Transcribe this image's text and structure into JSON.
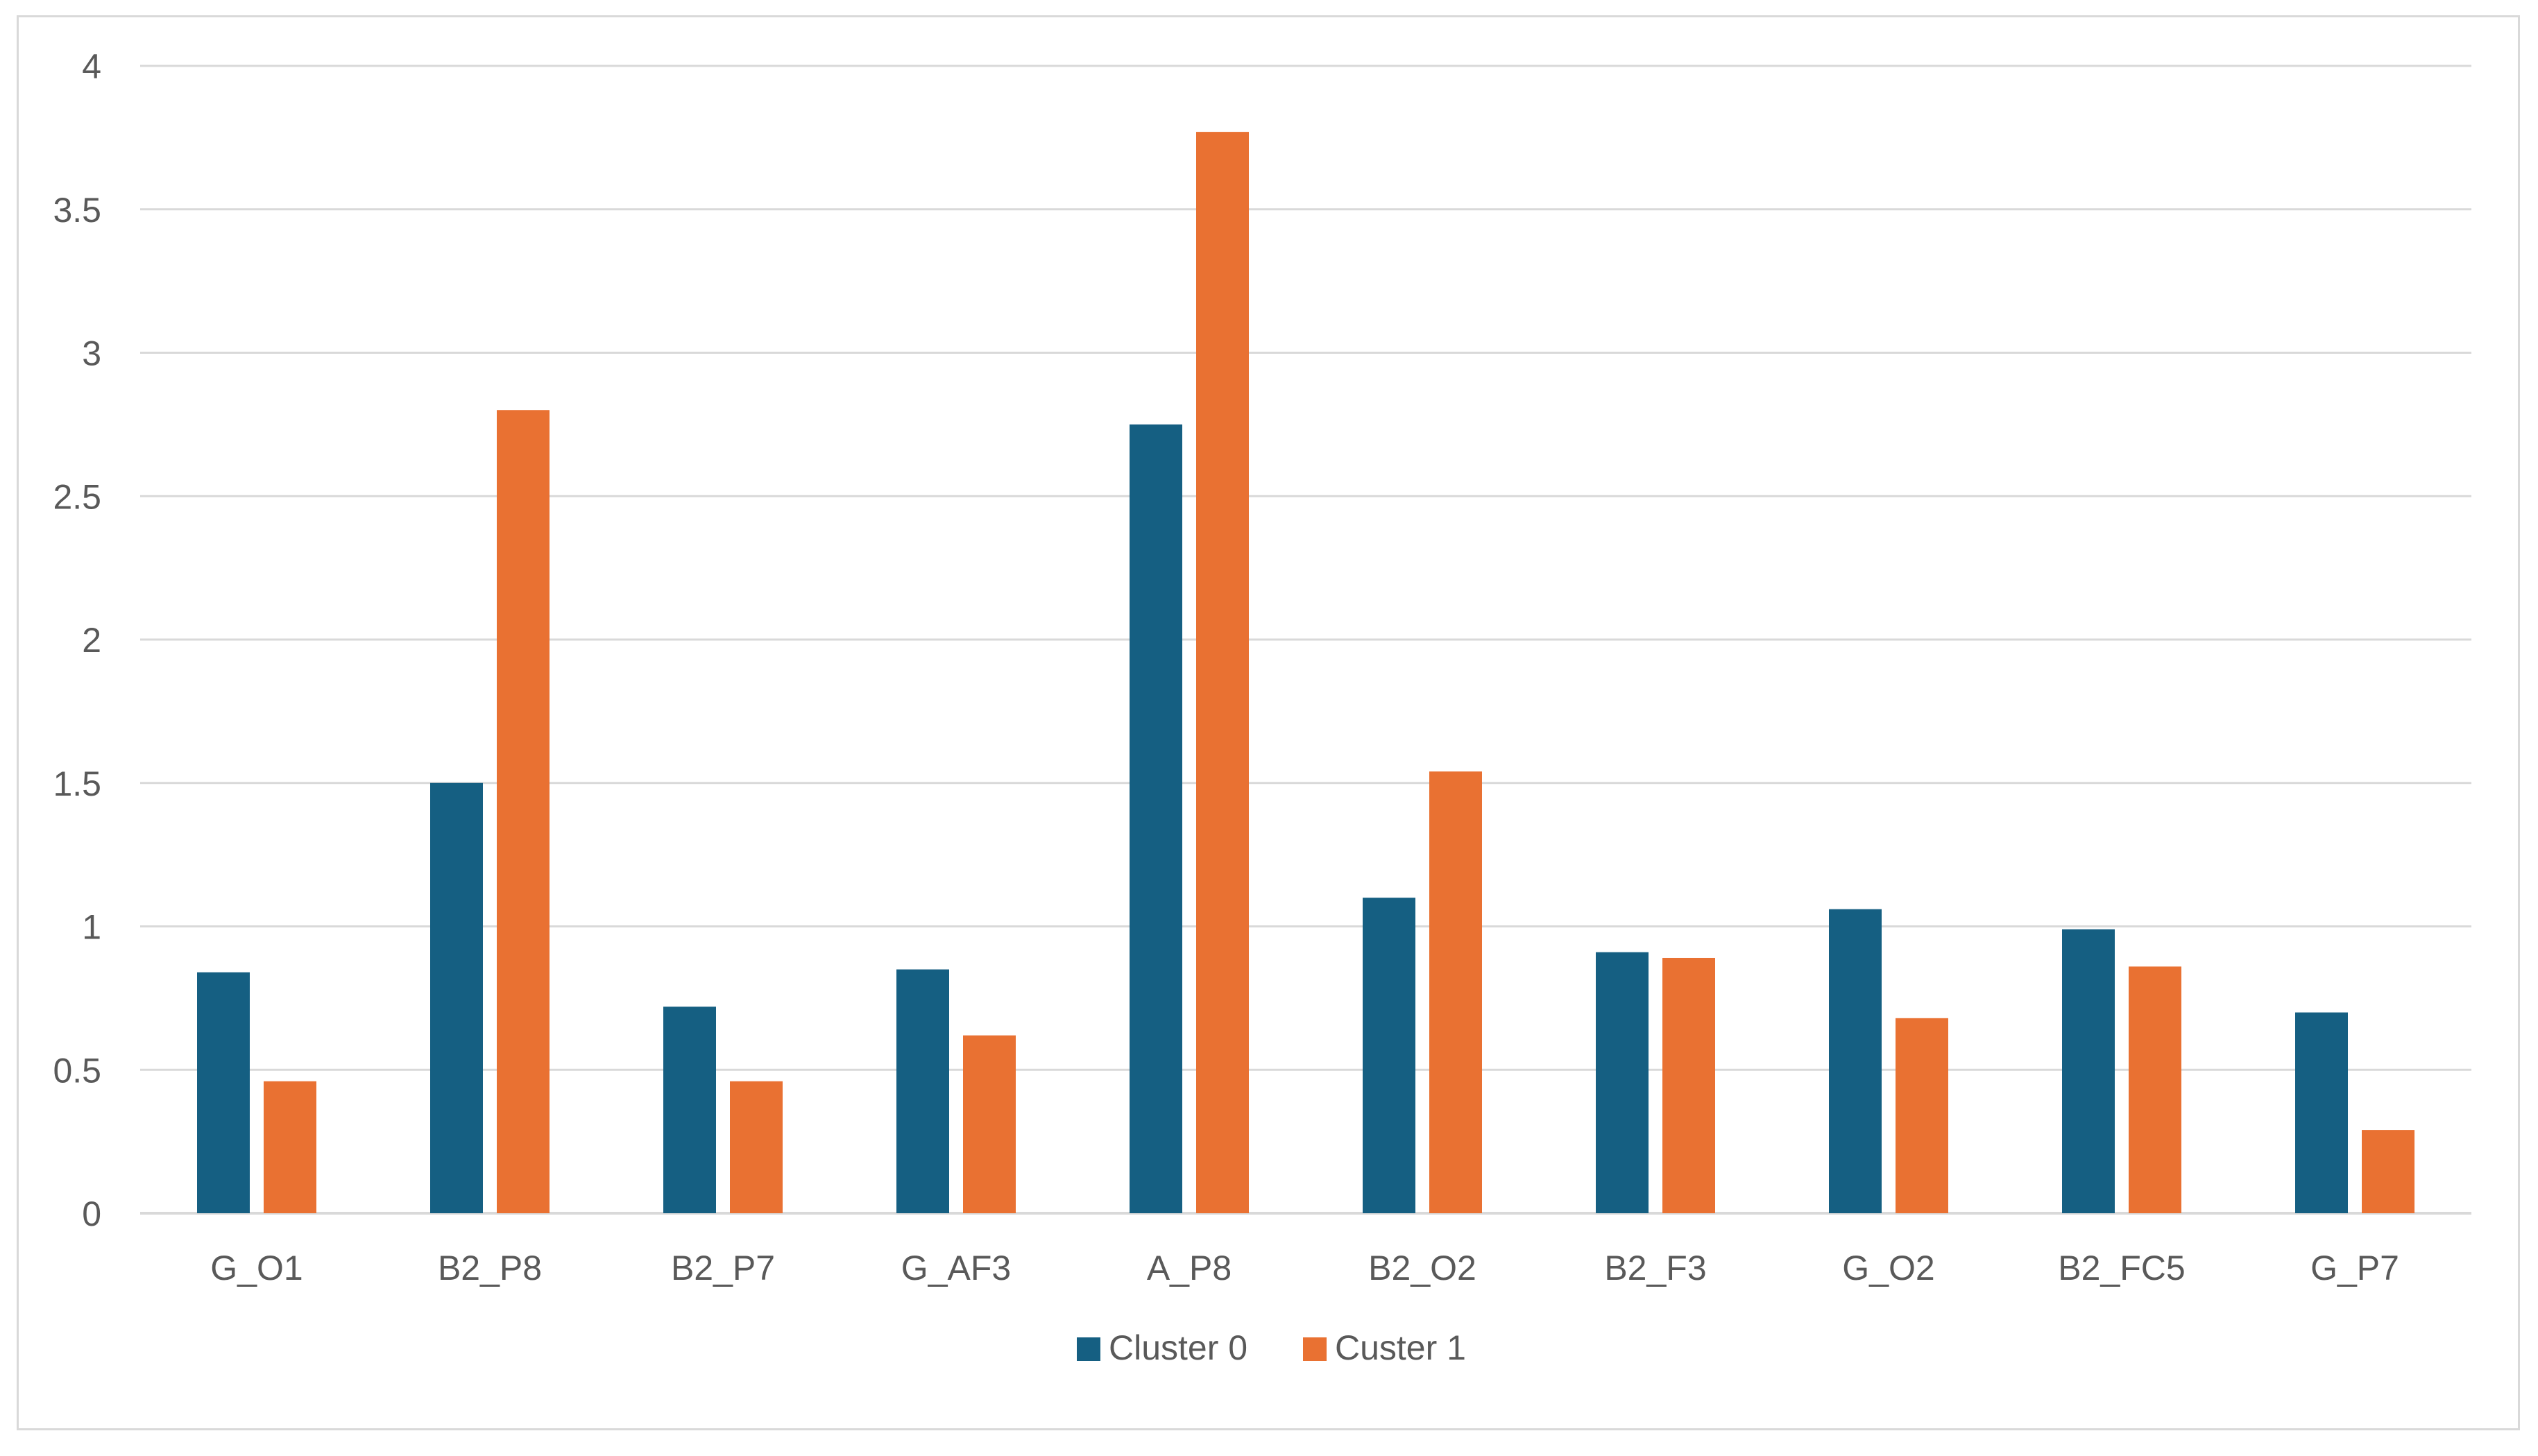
{
  "chart_data": {
    "type": "bar",
    "categories": [
      "G_O1",
      "B2_P8",
      "B2_P7",
      "G_AF3",
      "A_P8",
      "B2_O2",
      "B2_F3",
      "G_O2",
      "B2_FC5",
      "G_P7"
    ],
    "series": [
      {
        "name": "Cluster 0",
        "color": "#155f82",
        "values": [
          0.84,
          1.5,
          0.72,
          0.85,
          2.75,
          1.1,
          0.91,
          1.06,
          0.99,
          0.7
        ]
      },
      {
        "name": "Custer 1",
        "color": "#e97132",
        "values": [
          0.46,
          2.8,
          0.46,
          0.62,
          3.77,
          1.54,
          0.89,
          0.68,
          0.86,
          0.29
        ]
      }
    ],
    "y_ticks": [
      "0",
      "0.5",
      "1",
      "1.5",
      "2",
      "2.5",
      "3",
      "3.5",
      "4"
    ],
    "ylim": [
      0,
      4
    ],
    "grid": true,
    "legend_position": "bottom"
  }
}
